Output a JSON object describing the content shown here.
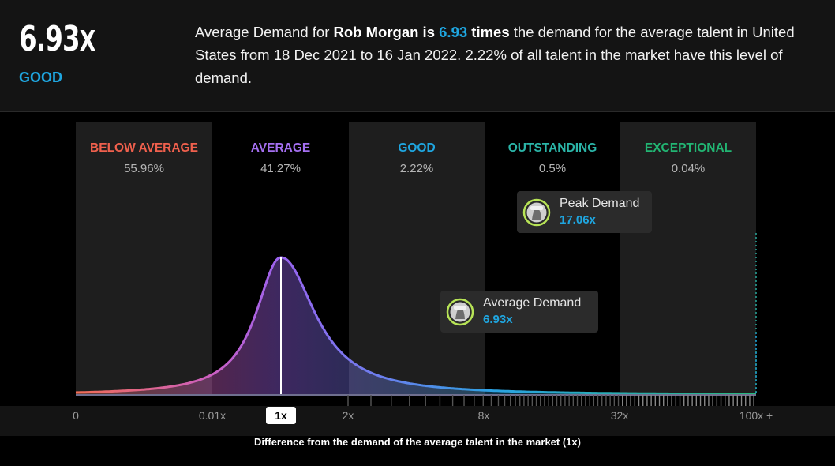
{
  "header": {
    "value_number": "6.93",
    "value_unit": "X",
    "rating": "GOOD",
    "rating_color": "#1fa6e0",
    "summary": {
      "p1": "Average Demand for ",
      "name": "Rob Morgan",
      "p2": " is ",
      "value": "6.93",
      "p3": " times",
      "p4": " the demand for the average talent in United States from 18 Dec 2021 to 16 Jan 2022. 2.22% of all talent in the market have this level of demand."
    }
  },
  "chart_data": {
    "type": "area",
    "xlabel": "Difference from the demand of the average talent in the market (1x)",
    "x_ticks": [
      "0",
      "0.01x",
      "1x",
      "2x",
      "8x",
      "32x",
      "100x +"
    ],
    "highlighted_tick": "1x",
    "bands": [
      {
        "name": "BELOW AVERAGE",
        "percent": "55.96%",
        "color": "#f0604d"
      },
      {
        "name": "AVERAGE",
        "percent": "41.27%",
        "color": "#a46ff0"
      },
      {
        "name": "GOOD",
        "percent": "2.22%",
        "color": "#1fa6e0"
      },
      {
        "name": "OUTSTANDING",
        "percent": "0.5%",
        "color": "#2bb5a8"
      },
      {
        "name": "EXCEPTIONAL",
        "percent": "0.04%",
        "color": "#22b573"
      }
    ],
    "markers": [
      {
        "label": "Peak Demand",
        "value": "17.06x",
        "tick_position": 8.8
      },
      {
        "label": "Average Demand",
        "value": "6.93x",
        "tick_position": 7.7
      }
    ],
    "average_line_at": "1x",
    "grid": false,
    "legend": "none"
  }
}
